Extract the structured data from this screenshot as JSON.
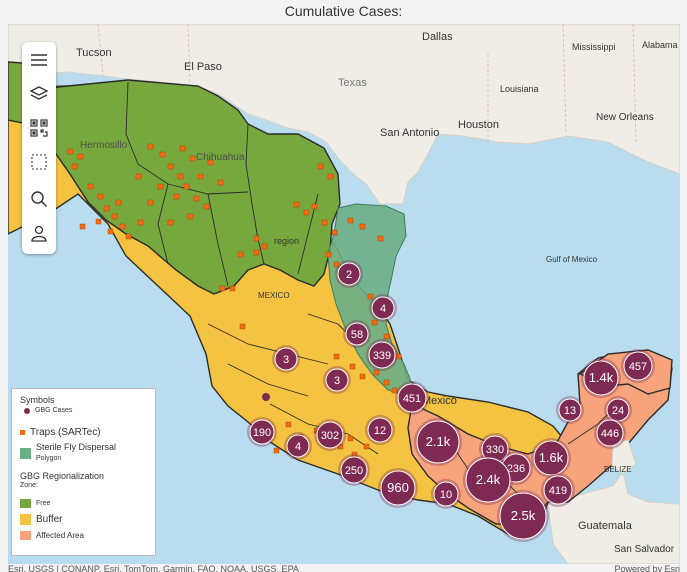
{
  "title": "Cumulative Cases:",
  "toolbar": {
    "items": [
      {
        "name": "menu-icon"
      },
      {
        "name": "layers-icon"
      },
      {
        "name": "qr-code-icon"
      },
      {
        "name": "select-area-icon"
      },
      {
        "name": "search-icon"
      },
      {
        "name": "user-icon"
      }
    ]
  },
  "place_labels": {
    "dallas": "Dallas",
    "tucson": "Tucson",
    "el_paso": "El Paso",
    "texas": "Texas",
    "mississippi": "Mississippi",
    "alabama": "Alabama",
    "louisiana": "Louisiana",
    "san_antonio": "San Antonio",
    "houston": "Houston",
    "new_orleans": "New Orleans",
    "hermosillo": "Hermosillo",
    "chihuahua": "Chihuahua",
    "region": "region",
    "gulf": "Gulf of Mexico",
    "mexico_state": "MEXICO",
    "mexico": "Mexico",
    "belize": "BELIZE",
    "guatemala": "Guatemala",
    "san_salvador": "San Salvador"
  },
  "clusters": [
    {
      "label": "2"
    },
    {
      "label": "4"
    },
    {
      "label": "58"
    },
    {
      "label": "339"
    },
    {
      "label": "3"
    },
    {
      "label": "3"
    },
    {
      "label": "451"
    },
    {
      "label": "190"
    },
    {
      "label": "4"
    },
    {
      "label": "302"
    },
    {
      "label": "12"
    },
    {
      "label": "2.1k"
    },
    {
      "label": "250"
    },
    {
      "label": "330"
    },
    {
      "label": "236"
    },
    {
      "label": "1.6k"
    },
    {
      "label": "2.4k"
    },
    {
      "label": "960"
    },
    {
      "label": "10"
    },
    {
      "label": "419"
    },
    {
      "label": "2.5k"
    },
    {
      "label": "1.4k"
    },
    {
      "label": "457"
    },
    {
      "label": "13"
    },
    {
      "label": "24"
    },
    {
      "label": "446"
    }
  ],
  "legend": {
    "symbols_title": "Symbols",
    "gbg_cases": "GBG Cases",
    "traps": "Traps (SARTec)",
    "sterile_fly": "Sterile Fly Dispersal",
    "polygon": "Polygon",
    "regionalization": "GBG Regionalization",
    "zone": "Zone:",
    "free": "Free",
    "buffer": "Buffer",
    "affected": "Affected Area"
  },
  "colors": {
    "free": "#77a83d",
    "buffer": "#f3c341",
    "affected": "#f7a47c",
    "sterile": "#6cae86",
    "cluster": "#7e2a52",
    "trap": "#f36c12",
    "water": "#b9ddef",
    "land": "#f0ede6"
  },
  "attribution": "Esri, USGS | CONANP, Esri, TomTom, Garmin, FAO, NOAA, USGS, EPA",
  "powered": "Powered by Esri"
}
